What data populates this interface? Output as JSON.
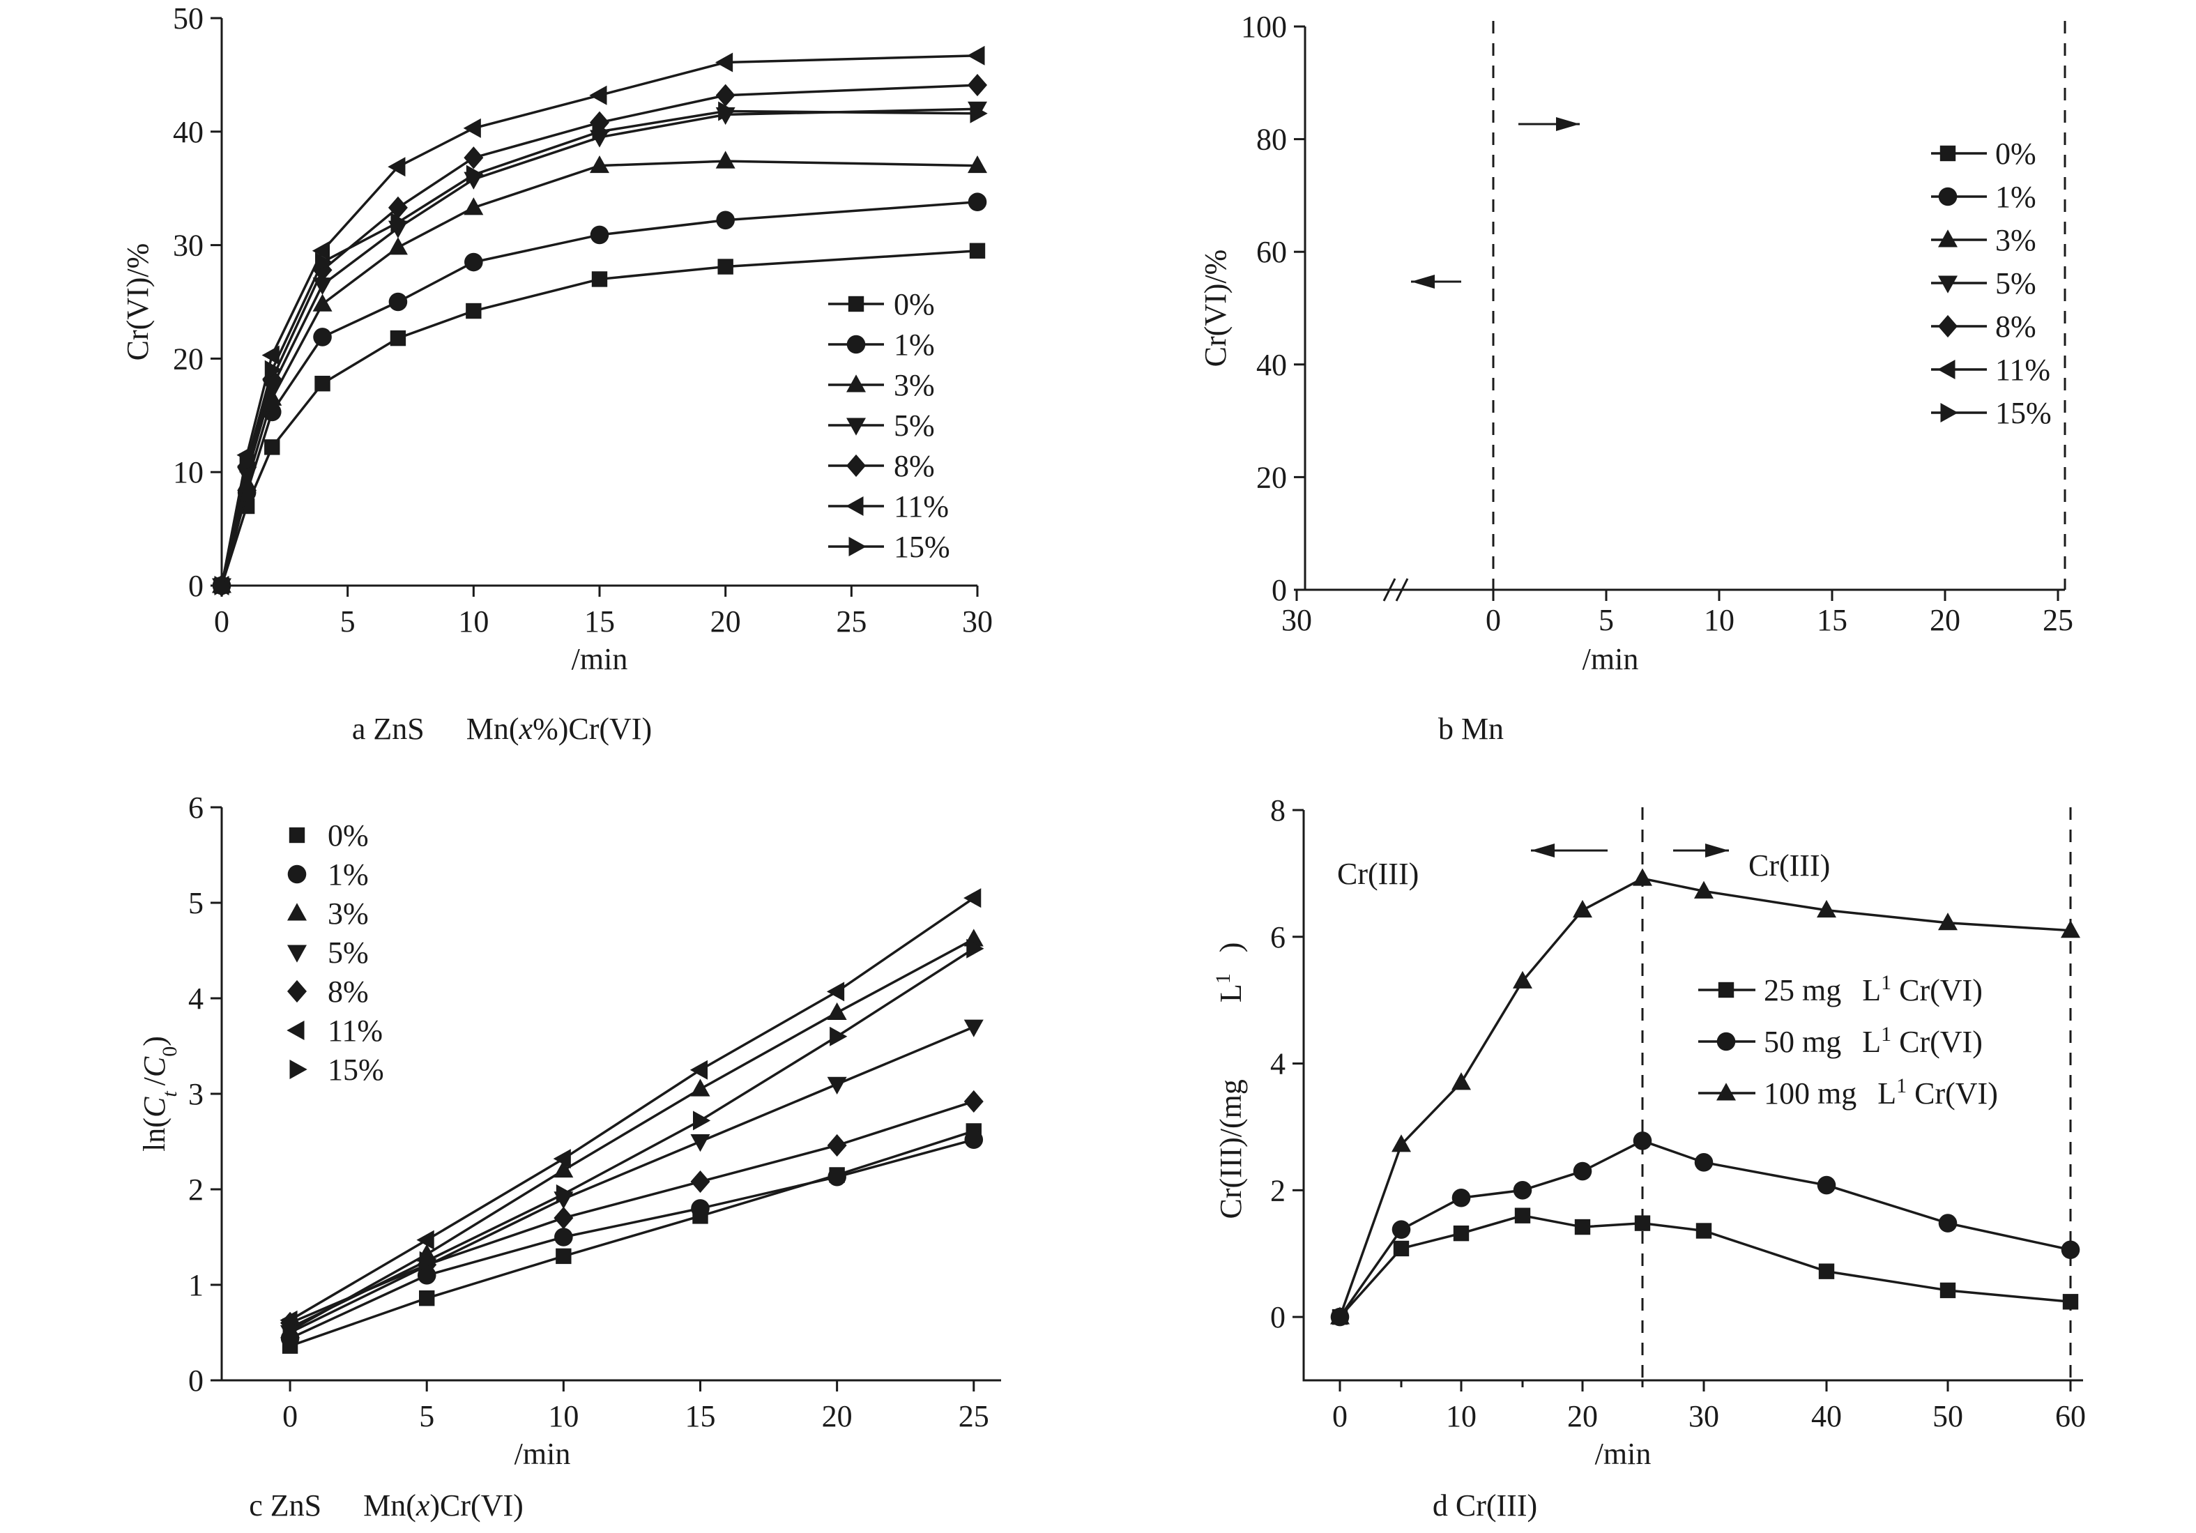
{
  "chart_data": [
    {
      "id": "a",
      "type": "line",
      "caption": "a ZnS　Mn(x%)Cr(VI)",
      "caption_parts": [
        "a ZnS",
        "Mn(",
        "x",
        "%)Cr(VI)"
      ],
      "xlabel": "/min",
      "ylabel": "Cr(VI)/%",
      "xlim": [
        0,
        30
      ],
      "ylim": [
        0,
        50
      ],
      "xticks": [
        0,
        5,
        10,
        15,
        20,
        25,
        30
      ],
      "yticks": [
        0,
        10,
        20,
        30,
        40,
        50
      ],
      "legend": "bottom-right",
      "x": [
        0,
        1,
        2,
        4,
        7,
        10,
        15,
        20,
        30
      ],
      "series": [
        {
          "name": "0%",
          "marker": "square",
          "values": [
            0,
            7,
            12.2,
            17.8,
            21.8,
            24.2,
            27,
            28.1,
            29.5
          ]
        },
        {
          "name": "1%",
          "marker": "circle",
          "values": [
            0,
            8.2,
            15.3,
            21.9,
            25,
            28.5,
            30.9,
            32.2,
            33.8
          ]
        },
        {
          "name": "3%",
          "marker": "triangle-up",
          "values": [
            0,
            9,
            16.5,
            24.8,
            29.8,
            33.3,
            37,
            37.4,
            37
          ]
        },
        {
          "name": "5%",
          "marker": "triangle-down",
          "values": [
            0,
            9.8,
            17.5,
            26.5,
            31.5,
            35.8,
            39.5,
            41.5,
            42
          ]
        },
        {
          "name": "8%",
          "marker": "diamond",
          "values": [
            0,
            10.5,
            18.2,
            27.8,
            33.3,
            37.7,
            40.8,
            43.2,
            44.1
          ]
        },
        {
          "name": "11%",
          "marker": "triangle-left",
          "values": [
            0,
            11.5,
            20.3,
            29.5,
            36.9,
            40.3,
            43.2,
            46.1,
            46.7
          ]
        },
        {
          "name": "15%",
          "marker": "triangle-right",
          "values": [
            0,
            10.8,
            19,
            28.5,
            32,
            36.2,
            40,
            41.8,
            41.6
          ]
        }
      ]
    },
    {
      "id": "b",
      "type": "line",
      "caption": "b Mn",
      "xlabel": "/min",
      "ylabel": "Cr(VI)/%",
      "ylim": [
        0,
        100
      ],
      "yticks": [
        0,
        20,
        40,
        60,
        80,
        100
      ],
      "xtick_labels": [
        "30",
        "0",
        "5",
        "10",
        "15",
        "20",
        "25"
      ],
      "axis_break": true,
      "dashed_lines_at": [
        "0",
        "25"
      ],
      "arrows": [
        "left",
        "right"
      ],
      "legend": "top-right",
      "legend_entries": [
        {
          "name": "0%",
          "marker": "square"
        },
        {
          "name": "1%",
          "marker": "circle"
        },
        {
          "name": "3%",
          "marker": "triangle-up"
        },
        {
          "name": "5%",
          "marker": "triangle-down"
        },
        {
          "name": "8%",
          "marker": "diamond"
        },
        {
          "name": "11%",
          "marker": "triangle-left"
        },
        {
          "name": "15%",
          "marker": "triangle-right"
        }
      ]
    },
    {
      "id": "c",
      "type": "line",
      "caption": "c ZnS　Mn(x)Cr(VI)",
      "caption_parts": [
        "c ZnS",
        "Mn(",
        "x",
        ")Cr(VI)"
      ],
      "xlabel": "/min",
      "ylabel": "ln(C t /C 0)",
      "ylabel_parts": [
        "ln(",
        "C",
        "t",
        "/",
        "C",
        "0",
        ")"
      ],
      "xlim": [
        -2.5,
        26
      ],
      "ylim": [
        0,
        6
      ],
      "xticks": [
        0,
        5,
        10,
        15,
        20,
        25
      ],
      "yticks": [
        0,
        1,
        2,
        3,
        4,
        5,
        6
      ],
      "legend": "top-left",
      "x": [
        0,
        5,
        10,
        15,
        20,
        25
      ],
      "series": [
        {
          "name": "0%",
          "marker": "square",
          "values": [
            0.36,
            0.86,
            1.3,
            1.72,
            2.15,
            2.61
          ]
        },
        {
          "name": "1%",
          "marker": "circle",
          "values": [
            0.44,
            1.1,
            1.5,
            1.8,
            2.13,
            2.52
          ]
        },
        {
          "name": "3%",
          "marker": "triangle-up",
          "values": [
            0.52,
            1.32,
            2.2,
            3.05,
            3.85,
            4.62
          ]
        },
        {
          "name": "5%",
          "marker": "triangle-down",
          "values": [
            0.5,
            1.2,
            1.9,
            2.5,
            3.1,
            3.7
          ]
        },
        {
          "name": "8%",
          "marker": "diamond",
          "values": [
            0.6,
            1.21,
            1.7,
            2.08,
            2.46,
            2.92
          ]
        },
        {
          "name": "11%",
          "marker": "triangle-left",
          "values": [
            0.63,
            1.47,
            2.32,
            3.25,
            4.07,
            5.05
          ]
        },
        {
          "name": "15%",
          "marker": "triangle-right",
          "values": [
            0.55,
            1.25,
            1.95,
            2.72,
            3.6,
            4.52
          ]
        }
      ]
    },
    {
      "id": "d",
      "type": "line",
      "caption": "d Cr(III)",
      "xlabel": "/min",
      "ylabel": "Cr(III)/(mg　　　L¹ )",
      "ylabel_parts": [
        "Cr(III)/(mg",
        "L",
        "1",
        ")"
      ],
      "ylim": [
        -1,
        8
      ],
      "yticks": [
        0,
        2,
        4,
        6,
        8
      ],
      "x": [
        0,
        5,
        10,
        15,
        20,
        25,
        30,
        40,
        50,
        60
      ],
      "xtick_values": [
        0,
        10,
        20,
        30,
        40,
        50,
        60
      ],
      "dashed_lines_at": [
        25,
        60
      ],
      "region_labels": [
        "Cr(III)",
        "Cr(III)"
      ],
      "arrows": [
        "left",
        "right"
      ],
      "legend": "center-right",
      "series": [
        {
          "name": "25 mg　L¹ Cr(VI)",
          "name_parts": [
            "25 mg",
            "L",
            "1",
            " Cr(VI)"
          ],
          "marker": "square",
          "values": [
            0,
            1.08,
            1.32,
            1.6,
            1.42,
            1.48,
            1.36,
            0.72,
            0.42,
            0.24
          ]
        },
        {
          "name": "50 mg　L¹ Cr(VI)",
          "name_parts": [
            "50 mg",
            "L",
            "1",
            " Cr(VI)"
          ],
          "marker": "circle",
          "values": [
            0,
            1.38,
            1.88,
            2.0,
            2.3,
            2.78,
            2.44,
            2.08,
            1.48,
            1.06
          ]
        },
        {
          "name": "100 mg　L¹ Cr(VI)",
          "name_parts": [
            "100 mg",
            "L",
            "1",
            " Cr(VI)"
          ],
          "marker": "triangle-up",
          "values": [
            0,
            2.72,
            3.7,
            5.3,
            6.42,
            6.92,
            6.72,
            6.42,
            6.22,
            6.1
          ]
        }
      ]
    }
  ]
}
